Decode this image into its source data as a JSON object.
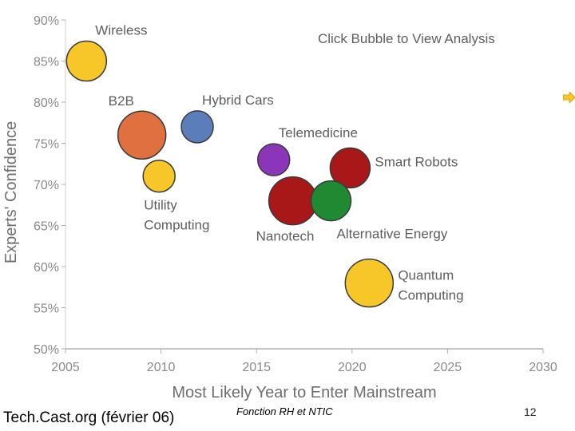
{
  "chart_data": {
    "type": "scatter",
    "variant": "bubble",
    "hint": "Click Bubble to View Analysis",
    "xlabel": "Most Likely Year to Enter Mainstream",
    "ylabel": "Experts' Confidence",
    "xlim": [
      2005,
      2030
    ],
    "ylim": [
      50,
      90
    ],
    "xticks": [
      2005,
      2010,
      2015,
      2020,
      2025,
      2030
    ],
    "yticks": [
      50,
      55,
      60,
      65,
      70,
      75,
      80,
      85,
      90
    ],
    "ytick_labels": [
      "50%",
      "55%",
      "60%",
      "65%",
      "70%",
      "75%",
      "80%",
      "85%",
      "90%"
    ],
    "points": [
      {
        "name": "Wireless",
        "label_lines": [
          "Wireless"
        ],
        "x": 2006.1,
        "y": 85.0,
        "color": "#f7c629",
        "size": "medium",
        "label_pos": "upper-right"
      },
      {
        "name": "B2B",
        "label_lines": [
          "B2B"
        ],
        "x": 2009.0,
        "y": 76.0,
        "color": "#e07040",
        "size": "large",
        "label_pos": "upper-left"
      },
      {
        "name": "Hybrid Cars",
        "label_lines": [
          "Hybrid Cars"
        ],
        "x": 2011.9,
        "y": 77.0,
        "color": "#5b7dba",
        "size": "small",
        "label_pos": "upper-right"
      },
      {
        "name": "Utility Computing",
        "label_lines": [
          "Utility",
          "Computing"
        ],
        "x": 2009.9,
        "y": 71.0,
        "color": "#f7c629",
        "size": "small",
        "label_pos": "below"
      },
      {
        "name": "Telemedicine",
        "label_lines": [
          "Telemedicine"
        ],
        "x": 2015.9,
        "y": 73.0,
        "color": "#8b35b8",
        "size": "small",
        "label_pos": "upper-right"
      },
      {
        "name": "Smart Robots",
        "label_lines": [
          "Smart Robots"
        ],
        "x": 2019.9,
        "y": 72.0,
        "color": "#a81818",
        "size": "medium",
        "label_pos": "right"
      },
      {
        "name": "Nanotech",
        "label_lines": [
          "Nanotech"
        ],
        "x": 2016.9,
        "y": 68.0,
        "color": "#a81818",
        "size": "large",
        "label_pos": "below"
      },
      {
        "name": "Alternative Energy",
        "label_lines": [
          "Alternative Energy"
        ],
        "x": 2018.9,
        "y": 68.0,
        "color": "#1f8a32",
        "size": "medium",
        "label_pos": "below-right"
      },
      {
        "name": "Quantum Computing",
        "label_lines": [
          "Quantum",
          "Computing"
        ],
        "x": 2020.9,
        "y": 58.0,
        "color": "#f7c629",
        "size": "large",
        "label_pos": "right"
      }
    ]
  },
  "footer": {
    "source": "Tech.Cast.org (février 06)",
    "center": "Fonction RH et NTIC",
    "page": "12"
  }
}
